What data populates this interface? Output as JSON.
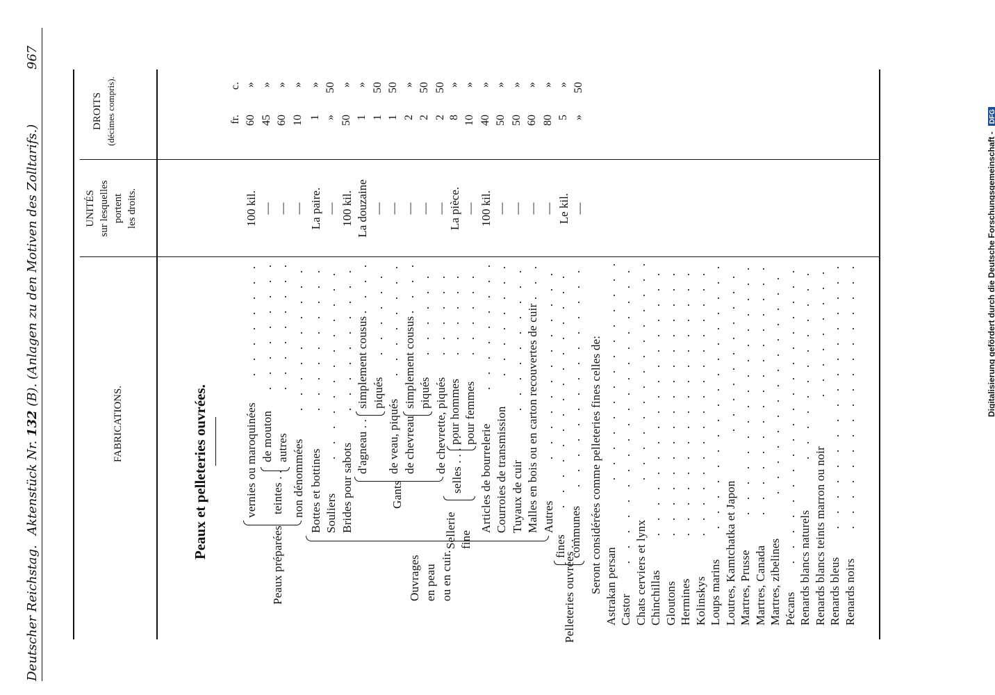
{
  "header": {
    "left": "Deutscher Reichstag.",
    "center_prefix": "Aktenstück Nr.",
    "center_num": "132",
    "center_suffix": "(B).",
    "center_title": "(Anlagen zu den Motiven des Zolltarifs.)",
    "page_number": "967"
  },
  "columns": {
    "fabrications": "FABRICATIONS.",
    "unites": [
      "UNITÉS",
      "sur lesquelles",
      "portent",
      "les droits."
    ],
    "droits": [
      "DROITS",
      "(décimes compris)."
    ],
    "droits_units": [
      "fr.",
      "c."
    ]
  },
  "section_title": "Peaux et pelleteries ouvrées.",
  "groups": {
    "peaux_preparees": "Peaux préparées",
    "teintes": "teintes . .",
    "ouvrages": [
      "Ouvrages",
      "en peau",
      "ou en cuir."
    ],
    "gants": "Gants",
    "dagneau": "d'agneau . .",
    "de_chevreau": "de chevreau",
    "sellerie": [
      "Sellerie",
      "fine"
    ],
    "selles": "selles . . . . .",
    "pelleteries": "Pelleteries ouvrées . ."
  },
  "rows": [
    {
      "label": "vernies ou maroquinées",
      "unit": "100 kil.",
      "fr": "60",
      "c": "»"
    },
    {
      "label": "de mouton",
      "unit": "—",
      "fr": "45",
      "c": "»"
    },
    {
      "label": "autres",
      "unit": "—",
      "fr": "60",
      "c": "»"
    },
    {
      "label": "non dénommées",
      "unit": "—",
      "fr": "10",
      "c": "»"
    },
    {
      "label": "Bottes et bottines",
      "unit": "La paire.",
      "fr": "1",
      "c": "»"
    },
    {
      "label": "Souliers",
      "unit": "—",
      "fr": "»",
      "c": "50"
    },
    {
      "label": "Brides pour sabots",
      "unit": "100 kil.",
      "fr": "50",
      "c": "»"
    },
    {
      "label": "simplement cousus",
      "unit": "La douzaine",
      "fr": "1",
      "c": "»"
    },
    {
      "label": "piqués",
      "unit": "—",
      "fr": "1",
      "c": "50"
    },
    {
      "label": "de veau, piqués",
      "unit": "—",
      "fr": "1",
      "c": "50"
    },
    {
      "label": "simplement cousus",
      "unit": "—",
      "fr": "2",
      "c": "»"
    },
    {
      "label": "piqués",
      "unit": "—",
      "fr": "2",
      "c": "50"
    },
    {
      "label": "de chevrette, piqués",
      "unit": "—",
      "fr": "2",
      "c": "50"
    },
    {
      "label": "pour hommes",
      "unit": "La pièce.",
      "fr": "8",
      "c": "»"
    },
    {
      "label": "pour femmes",
      "unit": "—",
      "fr": "10",
      "c": "»"
    },
    {
      "label": "Articles de bourrelerie",
      "unit": "100 kil.",
      "fr": "40",
      "c": "»"
    },
    {
      "label": "Courroies de transmission",
      "unit": "—",
      "fr": "50",
      "c": "»"
    },
    {
      "label": "Tuyaux de cuir",
      "unit": "—",
      "fr": "50",
      "c": "»"
    },
    {
      "label": "Malles en bois ou en carton recouvertes de cuir",
      "unit": "—",
      "fr": "60",
      "c": "»"
    },
    {
      "label": "Autres",
      "unit": "—",
      "fr": "80",
      "c": "»"
    },
    {
      "label": "fines",
      "unit": "Le kil.",
      "fr": "5",
      "c": "»"
    },
    {
      "label": "communes",
      "unit": "—",
      "fr": "»",
      "c": "50"
    }
  ],
  "considered_header": "Seront considérées comme pelleteries fines celles de:",
  "fines_list": [
    "Astrakan persan",
    "Castor",
    "Chats cerviers et lynx",
    "Chinchillas",
    "Gloutons",
    "Hermines",
    "Kolinskys",
    "Loups marins",
    "Loutres, Kamtchatka et Japon",
    "Martres, Prusse",
    "Martres, Canada",
    "Martres, zibelines",
    "Pécans",
    "Renards blancs naturels",
    "Renards blancs teints marron ou noir",
    "Renards bleus",
    "Renards noirs"
  ],
  "footer": {
    "digitization": "Digitalisierung gefördert durch die Deutsche Forschungsgemeinschaft -",
    "logo": "DFG"
  }
}
